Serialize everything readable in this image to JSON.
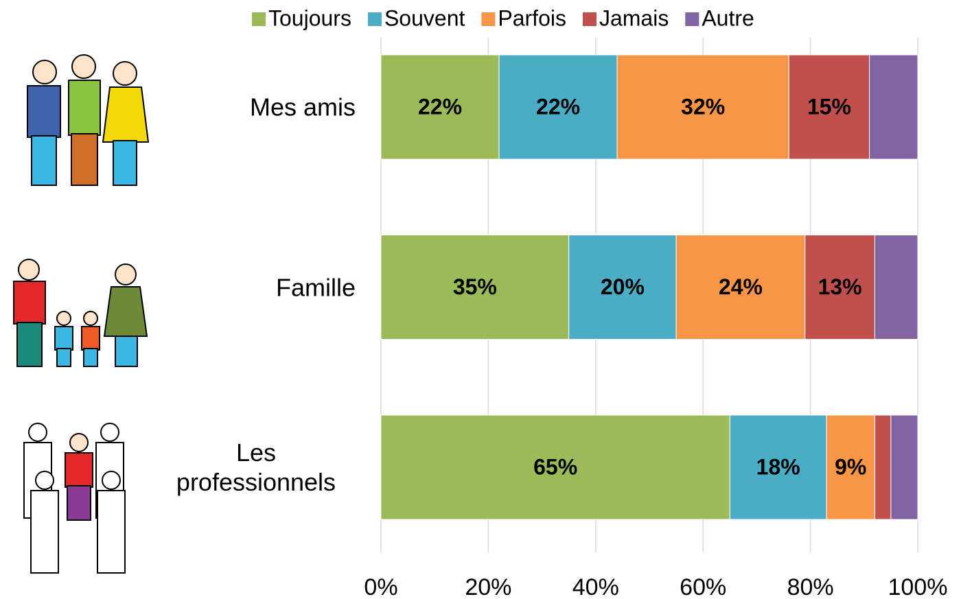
{
  "chart_data": {
    "type": "stacked-barh",
    "categories": [
      "Mes amis",
      "Famille",
      "Les professionnels"
    ],
    "series": [
      {
        "name": "Toujours",
        "color": "#9bbb59",
        "values": [
          22,
          35,
          65
        ],
        "value_labels": [
          "22%",
          "35%",
          "65%"
        ]
      },
      {
        "name": "Souvent",
        "color": "#4bacc6",
        "values": [
          22,
          20,
          18
        ],
        "value_labels": [
          "22%",
          "20%",
          "18%"
        ]
      },
      {
        "name": "Parfois",
        "color": "#f79646",
        "values": [
          32,
          24,
          9
        ],
        "value_labels": [
          "32%",
          "24%",
          "9%"
        ]
      },
      {
        "name": "Jamais",
        "color": "#c0504d",
        "values": [
          15,
          13,
          3
        ],
        "value_labels": [
          "15%",
          "13%",
          null
        ]
      },
      {
        "name": "Autre",
        "color": "#8064a2",
        "values": [
          9,
          8,
          5
        ],
        "value_labels": [
          null,
          null,
          null
        ]
      }
    ],
    "xlim": [
      0,
      100
    ],
    "xticks": [
      {
        "value": 0,
        "label": "0%"
      },
      {
        "value": 20,
        "label": "20%"
      },
      {
        "value": 40,
        "label": "40%"
      },
      {
        "value": 60,
        "label": "60%"
      },
      {
        "value": 80,
        "label": "80%"
      },
      {
        "value": 100,
        "label": "100%"
      }
    ],
    "grid": true,
    "legend": "top"
  }
}
